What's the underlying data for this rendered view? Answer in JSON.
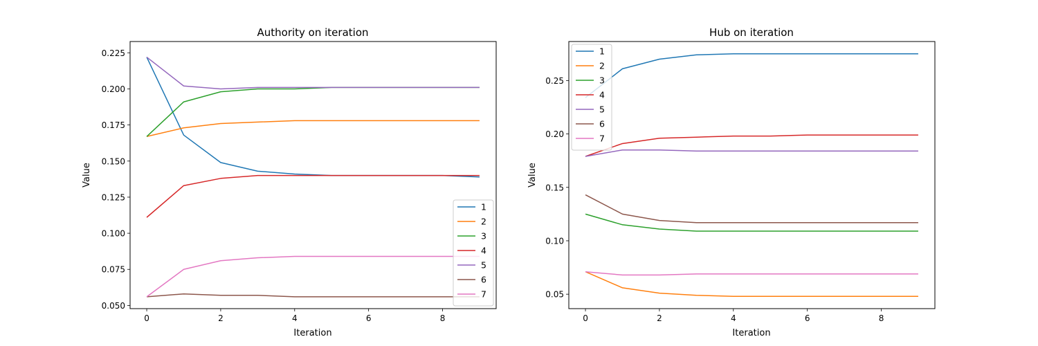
{
  "chart_data": [
    {
      "type": "line",
      "title": "Authority on iteration",
      "xlabel": "Iteration",
      "ylabel": "Value",
      "x": [
        0,
        1,
        2,
        3,
        4,
        5,
        6,
        7,
        8,
        9
      ],
      "xlim": [
        -0.45,
        9.45
      ],
      "ylim": [
        0.0478,
        0.2328
      ],
      "xticks": [
        0,
        2,
        4,
        6,
        8
      ],
      "xtick_labels": [
        "0",
        "2",
        "4",
        "6",
        "8"
      ],
      "yticks": [
        0.05,
        0.075,
        0.1,
        0.125,
        0.15,
        0.175,
        0.2,
        0.225
      ],
      "ytick_labels": [
        "0.050",
        "0.075",
        "0.100",
        "0.125",
        "0.150",
        "0.175",
        "0.200",
        "0.225"
      ],
      "legend_position": "lower-right",
      "series": [
        {
          "name": "1",
          "color": "#1f77b4",
          "values": [
            0.222,
            0.168,
            0.149,
            0.143,
            0.141,
            0.14,
            0.14,
            0.14,
            0.14,
            0.139
          ]
        },
        {
          "name": "2",
          "color": "#ff7f0e",
          "values": [
            0.167,
            0.173,
            0.176,
            0.177,
            0.178,
            0.178,
            0.178,
            0.178,
            0.178,
            0.178
          ]
        },
        {
          "name": "3",
          "color": "#2ca02c",
          "values": [
            0.167,
            0.191,
            0.198,
            0.2,
            0.2,
            0.201,
            0.201,
            0.201,
            0.201,
            0.201
          ]
        },
        {
          "name": "4",
          "color": "#d62728",
          "values": [
            0.111,
            0.133,
            0.138,
            0.14,
            0.14,
            0.14,
            0.14,
            0.14,
            0.14,
            0.14
          ]
        },
        {
          "name": "5",
          "color": "#9467bd",
          "values": [
            0.222,
            0.202,
            0.2,
            0.201,
            0.201,
            0.201,
            0.201,
            0.201,
            0.201,
            0.201
          ]
        },
        {
          "name": "6",
          "color": "#8c564b",
          "values": [
            0.056,
            0.058,
            0.057,
            0.057,
            0.056,
            0.056,
            0.056,
            0.056,
            0.056,
            0.056
          ]
        },
        {
          "name": "7",
          "color": "#e377c2",
          "values": [
            0.056,
            0.075,
            0.081,
            0.083,
            0.084,
            0.084,
            0.084,
            0.084,
            0.084,
            0.084
          ]
        }
      ]
    },
    {
      "type": "line",
      "title": "Hub on iteration",
      "xlabel": "Iteration",
      "ylabel": "Value",
      "x": [
        0,
        1,
        2,
        3,
        4,
        5,
        6,
        7,
        8,
        9
      ],
      "xlim": [
        -0.45,
        9.45
      ],
      "ylim": [
        0.0365,
        0.2865
      ],
      "xticks": [
        0,
        2,
        4,
        6,
        8
      ],
      "xtick_labels": [
        "0",
        "2",
        "4",
        "6",
        "8"
      ],
      "yticks": [
        0.05,
        0.1,
        0.15,
        0.2,
        0.25
      ],
      "ytick_labels": [
        "0.05",
        "0.10",
        "0.15",
        "0.20",
        "0.25"
      ],
      "legend_position": "upper-left",
      "series": [
        {
          "name": "1",
          "color": "#1f77b4",
          "values": [
            0.234,
            0.261,
            0.27,
            0.274,
            0.275,
            0.275,
            0.275,
            0.275,
            0.275,
            0.275
          ]
        },
        {
          "name": "2",
          "color": "#ff7f0e",
          "values": [
            0.071,
            0.056,
            0.051,
            0.049,
            0.048,
            0.048,
            0.048,
            0.048,
            0.048,
            0.048
          ]
        },
        {
          "name": "3",
          "color": "#2ca02c",
          "values": [
            0.125,
            0.115,
            0.111,
            0.109,
            0.109,
            0.109,
            0.109,
            0.109,
            0.109,
            0.109
          ]
        },
        {
          "name": "4",
          "color": "#d62728",
          "values": [
            0.179,
            0.191,
            0.196,
            0.197,
            0.198,
            0.198,
            0.199,
            0.199,
            0.199,
            0.199
          ]
        },
        {
          "name": "5",
          "color": "#9467bd",
          "values": [
            0.179,
            0.185,
            0.185,
            0.184,
            0.184,
            0.184,
            0.184,
            0.184,
            0.184,
            0.184
          ]
        },
        {
          "name": "6",
          "color": "#8c564b",
          "values": [
            0.143,
            0.125,
            0.119,
            0.117,
            0.117,
            0.117,
            0.117,
            0.117,
            0.117,
            0.117
          ]
        },
        {
          "name": "7",
          "color": "#e377c2",
          "values": [
            0.071,
            0.068,
            0.068,
            0.069,
            0.069,
            0.069,
            0.069,
            0.069,
            0.069,
            0.069
          ]
        }
      ]
    }
  ]
}
